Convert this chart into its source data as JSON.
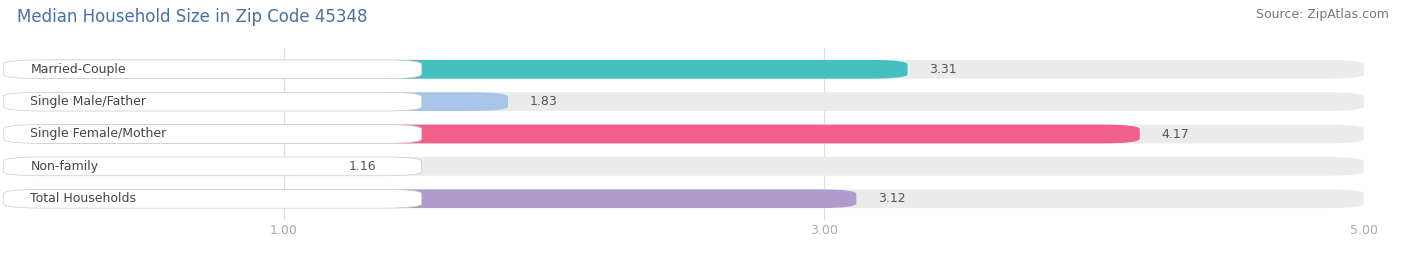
{
  "title": "Median Household Size in Zip Code 45348",
  "source": "Source: ZipAtlas.com",
  "categories": [
    "Married-Couple",
    "Single Male/Father",
    "Single Female/Mother",
    "Non-family",
    "Total Households"
  ],
  "values": [
    3.31,
    1.83,
    4.17,
    1.16,
    3.12
  ],
  "bar_colors": [
    "#45bfbf",
    "#a8c4e8",
    "#f0608a",
    "#f5c990",
    "#b09ccc"
  ],
  "bar_bg_color": "#ebebeb",
  "xlim_max": 5.0,
  "xticks": [
    1.0,
    3.0,
    5.0
  ],
  "xtick_labels": [
    "1.00",
    "3.00",
    "5.00"
  ],
  "bar_height": 0.58,
  "bar_gap": 0.42,
  "background_color": "#ffffff",
  "title_color": "#4a6fa5",
  "title_fontsize": 12,
  "label_fontsize": 9,
  "value_fontsize": 9,
  "source_fontsize": 9,
  "tick_color": "#aaaaaa",
  "value_color": "#555555"
}
